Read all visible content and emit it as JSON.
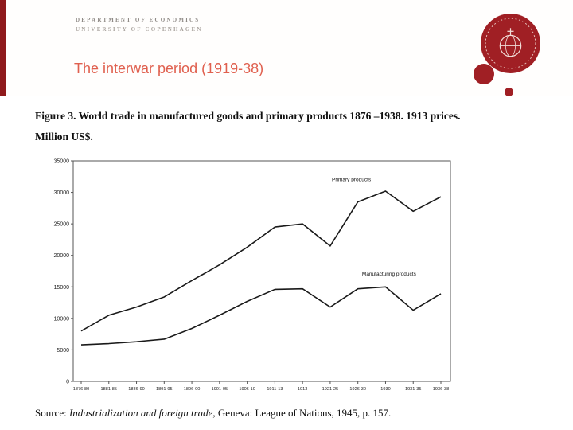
{
  "header": {
    "department": "DEPARTMENT OF ECONOMICS",
    "university": "UNIVERSITY OF COPENHAGEN",
    "title": "The interwar period (1919-38)"
  },
  "figure": {
    "title_line1": "Figure 3. World trade in manufactured goods and primary products 1876 –1938. 1913 prices.",
    "title_line2": "Million US$.",
    "source_prefix": "Source: ",
    "source_title": "Industrialization and foreign trade",
    "source_rest": ", Geneva: League of Nations, 1945, p. 157."
  },
  "colors": {
    "stripe_red": "#8f1a1c",
    "logo_red": "#a01f24",
    "title_salmon": "#e0604f",
    "chart_line": "#1a1a1a",
    "axis": "#555555"
  },
  "chart_data": {
    "type": "line",
    "title": "World trade in manufactured goods and primary products 1876–1938, 1913 prices, Million US$",
    "categories": [
      "1876-80",
      "1881-85",
      "1886-90",
      "1891-95",
      "1896-00",
      "1901-05",
      "1906-10",
      "1911-13",
      "1913",
      "1921-25",
      "1926-30",
      "1930",
      "1931-35",
      "1936-38"
    ],
    "series": [
      {
        "name": "Primary products",
        "values": [
          8000,
          10500,
          11800,
          13400,
          16000,
          18500,
          21300,
          24500,
          25000,
          21500,
          28500,
          30200,
          27000,
          29300
        ]
      },
      {
        "name": "Manufacturing products",
        "values": [
          5800,
          6000,
          6300,
          6700,
          8400,
          10500,
          12700,
          14600,
          14700,
          11800,
          14700,
          15000,
          11300,
          13900
        ]
      }
    ],
    "ylim": [
      0,
      35000
    ],
    "ytick_step": 5000,
    "grid": false,
    "legend_position": "inline-labels",
    "annotations": [
      {
        "text": "Primary products",
        "x_index": 9.06,
        "value": 31800
      },
      {
        "text": "Manufacturing products",
        "x_index": 10.15,
        "value": 16800
      }
    ]
  }
}
